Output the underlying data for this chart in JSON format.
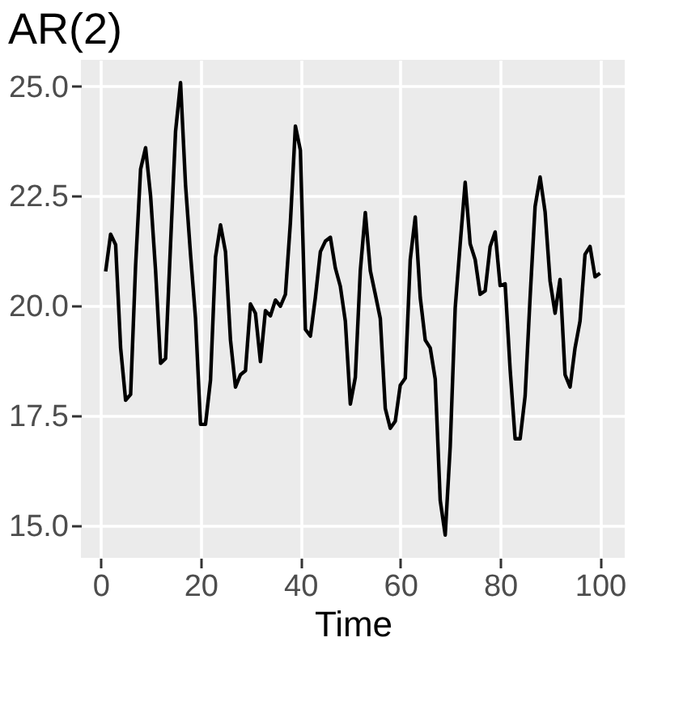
{
  "chart_data": {
    "type": "line",
    "title": "AR(2)",
    "xlabel": "Time",
    "x": [
      1,
      2,
      3,
      4,
      5,
      6,
      7,
      8,
      9,
      10,
      11,
      12,
      13,
      14,
      15,
      16,
      17,
      18,
      19,
      20,
      21,
      22,
      23,
      24,
      25,
      26,
      27,
      28,
      29,
      30,
      31,
      32,
      33,
      34,
      35,
      36,
      37,
      38,
      39,
      40,
      41,
      42,
      43,
      44,
      45,
      46,
      47,
      48,
      49,
      50,
      51,
      52,
      53,
      54,
      55,
      56,
      57,
      58,
      59,
      60,
      61,
      62,
      63,
      64,
      65,
      66,
      67,
      68,
      69,
      70,
      71,
      72,
      73,
      74,
      75,
      76,
      77,
      78,
      79,
      80,
      81,
      82,
      83,
      84,
      85,
      86,
      87,
      88,
      89,
      90,
      91,
      92,
      93,
      94,
      95,
      96,
      97,
      98,
      99,
      100
    ],
    "series": [
      {
        "color": "#000000",
        "values": [
          20.78,
          21.63,
          21.39,
          19.04,
          17.85,
          17.98,
          20.92,
          23.11,
          23.6,
          22.5,
          20.8,
          18.69,
          18.8,
          21.41,
          23.97,
          25.08,
          22.75,
          21.17,
          19.71,
          17.3,
          17.3,
          18.31,
          21.11,
          21.84,
          21.23,
          19.22,
          18.15,
          18.43,
          18.52,
          20.04,
          19.83,
          18.73,
          19.89,
          19.77,
          20.13,
          19.99,
          20.26,
          21.9,
          24.09,
          23.54,
          19.46,
          19.31,
          20.19,
          21.23,
          21.47,
          21.56,
          20.86,
          20.44,
          19.65,
          17.76,
          18.37,
          20.8,
          22.12,
          20.8,
          20.26,
          19.71,
          17.66,
          17.21,
          17.37,
          18.19,
          18.35,
          21.05,
          22.02,
          20.19,
          19.22,
          19.04,
          18.33,
          15.57,
          14.78,
          16.79,
          19.95,
          21.41,
          22.81,
          21.41,
          21.05,
          20.26,
          20.34,
          21.35,
          21.68,
          20.46,
          20.5,
          18.55,
          16.97,
          16.97,
          17.94,
          20.19,
          22.26,
          22.93,
          22.14,
          20.56,
          19.83,
          20.6,
          18.43,
          18.15,
          19.04,
          19.65,
          21.17,
          21.35,
          20.66,
          20.74
        ]
      }
    ],
    "xlim": [
      -3.95,
      104.95
    ],
    "ylim": [
      14.26,
      25.6
    ],
    "xticks": [
      0,
      20,
      40,
      60,
      80,
      100
    ],
    "yticks": [
      {
        "value": 15,
        "label": "15.0"
      },
      {
        "value": 17.5,
        "label": "17.5"
      },
      {
        "value": 20,
        "label": "20.0"
      },
      {
        "value": 22.5,
        "label": "22.5"
      },
      {
        "value": 25,
        "label": "25.0"
      }
    ],
    "grid": true,
    "legend": false,
    "marker": "none",
    "line_style": "solid"
  }
}
